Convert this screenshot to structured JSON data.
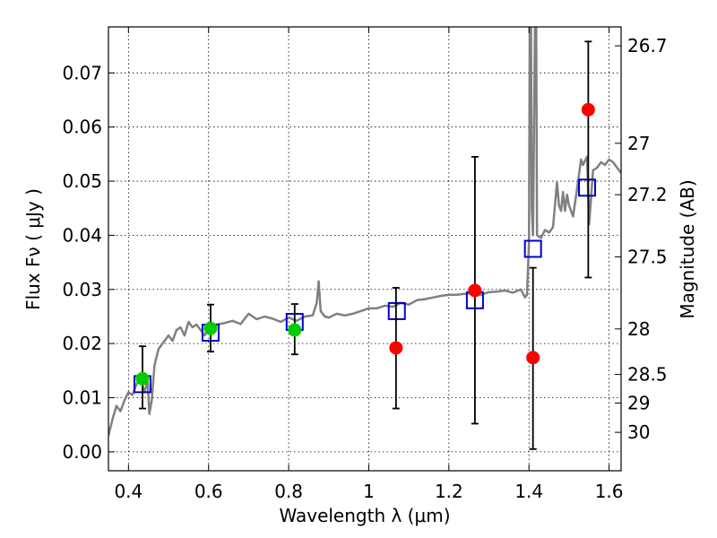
{
  "chart_data": {
    "type": "scatter",
    "xlabel": "Wavelength  λ (μm)",
    "ylabel": "Flux  Fν  ( μJy )",
    "y2label": "Magnitude (AB)",
    "xlim": [
      0.35,
      1.63
    ],
    "ylim": [
      -0.0035,
      0.0785
    ],
    "grid": true,
    "x_ticks": [
      {
        "value": 0.4,
        "label": "0.4"
      },
      {
        "value": 0.6,
        "label": "0.6"
      },
      {
        "value": 0.8,
        "label": "0.8"
      },
      {
        "value": 1.0,
        "label": "1"
      },
      {
        "value": 1.2,
        "label": "1.2"
      },
      {
        "value": 1.4,
        "label": "1.4"
      },
      {
        "value": 1.6,
        "label": "1.6"
      }
    ],
    "y_ticks": [
      {
        "value": 0.0,
        "label": "0.00"
      },
      {
        "value": 0.01,
        "label": "0.01"
      },
      {
        "value": 0.02,
        "label": "0.02"
      },
      {
        "value": 0.03,
        "label": "0.03"
      },
      {
        "value": 0.04,
        "label": "0.04"
      },
      {
        "value": 0.05,
        "label": "0.05"
      },
      {
        "value": 0.06,
        "label": "0.06"
      },
      {
        "value": 0.07,
        "label": "0.07"
      }
    ],
    "y2_ticks": [
      {
        "flux": 0.075,
        "label": "26.7"
      },
      {
        "flux": 0.057,
        "label": "27"
      },
      {
        "flux": 0.0475,
        "label": "27.2"
      },
      {
        "flux": 0.036,
        "label": "27.5"
      },
      {
        "flux": 0.0227,
        "label": "28"
      },
      {
        "flux": 0.0143,
        "label": "28.5"
      },
      {
        "flux": 0.009,
        "label": "29"
      },
      {
        "flux": 0.0036,
        "label": "30"
      }
    ],
    "series": [
      {
        "kind": "line",
        "color": "#808080",
        "points": [
          [
            0.35,
            0.003
          ],
          [
            0.36,
            0.006
          ],
          [
            0.37,
            0.0085
          ],
          [
            0.38,
            0.0075
          ],
          [
            0.39,
            0.0095
          ],
          [
            0.4,
            0.011
          ],
          [
            0.41,
            0.0105
          ],
          [
            0.42,
            0.0125
          ],
          [
            0.43,
            0.0135
          ],
          [
            0.44,
            0.011
          ],
          [
            0.448,
            0.013
          ],
          [
            0.452,
            0.007
          ],
          [
            0.458,
            0.0095
          ],
          [
            0.465,
            0.016
          ],
          [
            0.475,
            0.019
          ],
          [
            0.49,
            0.0205
          ],
          [
            0.5,
            0.0215
          ],
          [
            0.51,
            0.0205
          ],
          [
            0.52,
            0.0225
          ],
          [
            0.53,
            0.023
          ],
          [
            0.54,
            0.0215
          ],
          [
            0.55,
            0.024
          ],
          [
            0.56,
            0.023
          ],
          [
            0.57,
            0.0235
          ],
          [
            0.58,
            0.0225
          ],
          [
            0.59,
            0.0215
          ],
          [
            0.6,
            0.0228
          ],
          [
            0.62,
            0.0235
          ],
          [
            0.64,
            0.0238
          ],
          [
            0.66,
            0.0242
          ],
          [
            0.68,
            0.0236
          ],
          [
            0.7,
            0.0255
          ],
          [
            0.72,
            0.0245
          ],
          [
            0.74,
            0.025
          ],
          [
            0.76,
            0.0246
          ],
          [
            0.78,
            0.024
          ],
          [
            0.8,
            0.0248
          ],
          [
            0.82,
            0.0242
          ],
          [
            0.84,
            0.025
          ],
          [
            0.86,
            0.0252
          ],
          [
            0.87,
            0.0275
          ],
          [
            0.875,
            0.0315
          ],
          [
            0.88,
            0.026
          ],
          [
            0.89,
            0.025
          ],
          [
            0.9,
            0.0248
          ],
          [
            0.92,
            0.0255
          ],
          [
            0.94,
            0.0252
          ],
          [
            0.96,
            0.0255
          ],
          [
            0.98,
            0.026
          ],
          [
            1.0,
            0.0265
          ],
          [
            1.02,
            0.0265
          ],
          [
            1.04,
            0.027
          ],
          [
            1.06,
            0.0268
          ],
          [
            1.08,
            0.0275
          ],
          [
            1.1,
            0.0272
          ],
          [
            1.12,
            0.028
          ],
          [
            1.14,
            0.0282
          ],
          [
            1.16,
            0.0285
          ],
          [
            1.18,
            0.0288
          ],
          [
            1.2,
            0.029
          ],
          [
            1.22,
            0.029
          ],
          [
            1.24,
            0.0292
          ],
          [
            1.26,
            0.0293
          ],
          [
            1.28,
            0.029
          ],
          [
            1.3,
            0.0295
          ],
          [
            1.32,
            0.0296
          ],
          [
            1.34,
            0.0298
          ],
          [
            1.36,
            0.0294
          ],
          [
            1.38,
            0.03
          ],
          [
            1.39,
            0.0285
          ],
          [
            1.395,
            0.029
          ],
          [
            1.4,
            0.0385
          ],
          [
            1.402,
            0.0785
          ],
          [
            1.405,
            0.0785
          ],
          [
            1.407,
            0.045
          ],
          [
            1.41,
            0.04
          ],
          [
            1.415,
            0.0785
          ],
          [
            1.418,
            0.0785
          ],
          [
            1.42,
            0.04
          ],
          [
            1.43,
            0.0395
          ],
          [
            1.44,
            0.041
          ],
          [
            1.45,
            0.0405
          ],
          [
            1.46,
            0.0415
          ],
          [
            1.47,
            0.0498
          ],
          [
            1.475,
            0.0455
          ],
          [
            1.48,
            0.0445
          ],
          [
            1.485,
            0.048
          ],
          [
            1.49,
            0.0445
          ],
          [
            1.495,
            0.0475
          ],
          [
            1.5,
            0.0455
          ],
          [
            1.51,
            0.0435
          ],
          [
            1.52,
            0.0485
          ],
          [
            1.53,
            0.054
          ],
          [
            1.535,
            0.053
          ],
          [
            1.54,
            0.0538
          ],
          [
            1.545,
            0.0545
          ],
          [
            1.55,
            0.042
          ],
          [
            1.555,
            0.047
          ],
          [
            1.56,
            0.052
          ],
          [
            1.57,
            0.0525
          ],
          [
            1.58,
            0.0535
          ],
          [
            1.59,
            0.053
          ],
          [
            1.6,
            0.054
          ],
          [
            1.61,
            0.0535
          ],
          [
            1.62,
            0.0525
          ],
          [
            1.63,
            0.0515
          ]
        ]
      },
      {
        "kind": "open-square",
        "color": "#0000cc",
        "points": [
          [
            0.435,
            0.0125
          ],
          [
            0.605,
            0.022
          ],
          [
            0.815,
            0.024
          ],
          [
            1.07,
            0.026
          ],
          [
            1.265,
            0.028
          ],
          [
            1.41,
            0.0375
          ],
          [
            1.545,
            0.0488
          ]
        ]
      },
      {
        "kind": "circle",
        "color": "#00cc00",
        "points": [
          {
            "x": 0.435,
            "y": 0.0135,
            "err_lo": 0.008,
            "err_hi": 0.0195
          },
          {
            "x": 0.605,
            "y": 0.0228,
            "err_lo": 0.0185,
            "err_hi": 0.0272
          },
          {
            "x": 0.815,
            "y": 0.0225,
            "err_lo": 0.018,
            "err_hi": 0.0273
          }
        ]
      },
      {
        "kind": "circle",
        "color": "#ff0000",
        "points": [
          {
            "x": 1.068,
            "y": 0.0192,
            "err_lo": 0.008,
            "err_hi": 0.0303
          },
          {
            "x": 1.265,
            "y": 0.0298,
            "err_lo": 0.0052,
            "err_hi": 0.0545
          },
          {
            "x": 1.41,
            "y": 0.0174,
            "err_lo": 0.0005,
            "err_hi": 0.034
          },
          {
            "x": 1.548,
            "y": 0.0632,
            "err_lo": 0.0322,
            "err_hi": 0.0758
          }
        ]
      }
    ]
  }
}
